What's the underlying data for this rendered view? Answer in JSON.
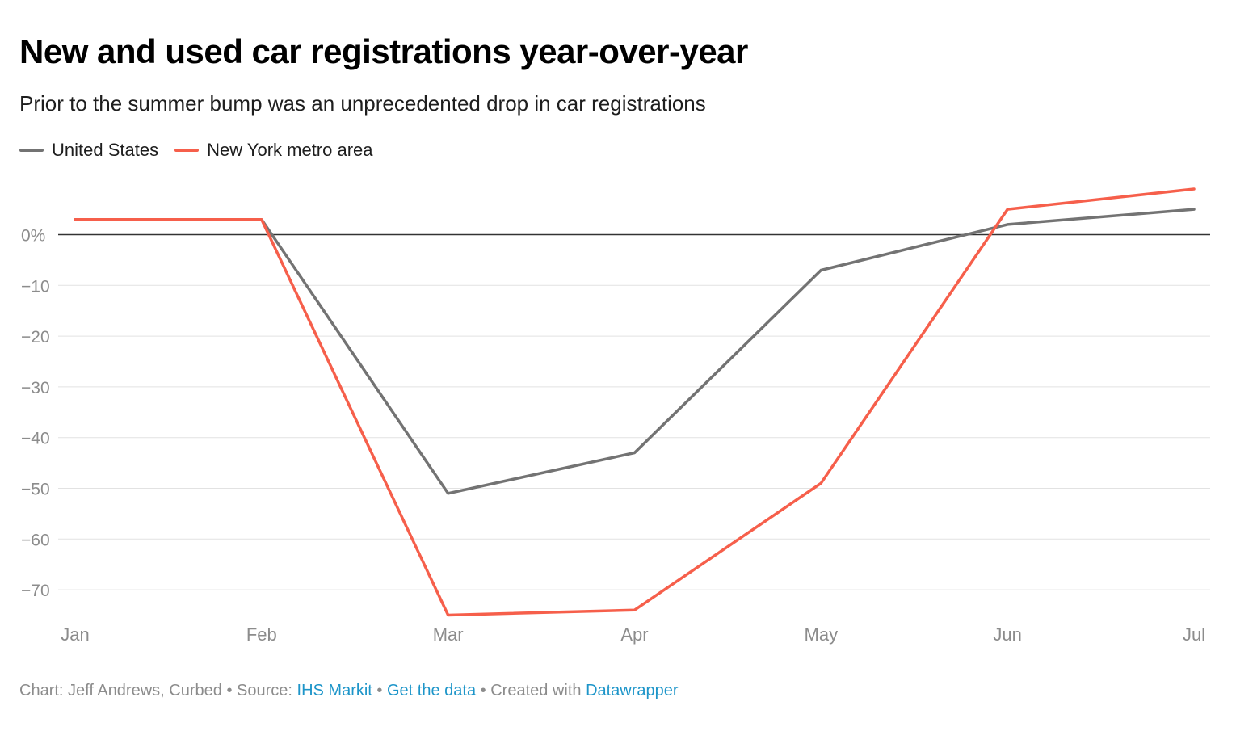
{
  "title": "New and used car registrations year-over-year",
  "subtitle": "Prior to the summer bump was an unprecedented drop in car registrations",
  "footer": {
    "chart_credit": "Chart: Jeff Andrews, Curbed",
    "separator": "•",
    "source_label": "Source:",
    "source_link": "IHS Markit",
    "data_link": "Get the data",
    "created_label": "Created with",
    "created_link": "Datawrapper"
  },
  "chart_data": {
    "type": "line",
    "title": "New and used car registrations year-over-year",
    "subtitle": "Prior to the summer bump was an unprecedented drop in car registrations",
    "xlabel": "",
    "ylabel": "",
    "categories": [
      "Jan",
      "Feb",
      "Mar",
      "Apr",
      "May",
      "Jun",
      "Jul"
    ],
    "ylim": [
      -76,
      9
    ],
    "yticks": [
      0,
      -10,
      -20,
      -30,
      -40,
      -50,
      -60,
      -70
    ],
    "ytick_labels": [
      "0%",
      "−10",
      "−20",
      "−30",
      "−40",
      "−50",
      "−60",
      "−70"
    ],
    "grid": true,
    "legend_position": "top-left",
    "series": [
      {
        "name": "United States",
        "color": "#737373",
        "values": [
          3,
          3,
          -51,
          -43,
          -7,
          2,
          5
        ]
      },
      {
        "name": "New York metro area",
        "color": "#f65f4b",
        "values": [
          3,
          3,
          -75,
          -74,
          -49,
          5,
          9
        ]
      }
    ]
  }
}
